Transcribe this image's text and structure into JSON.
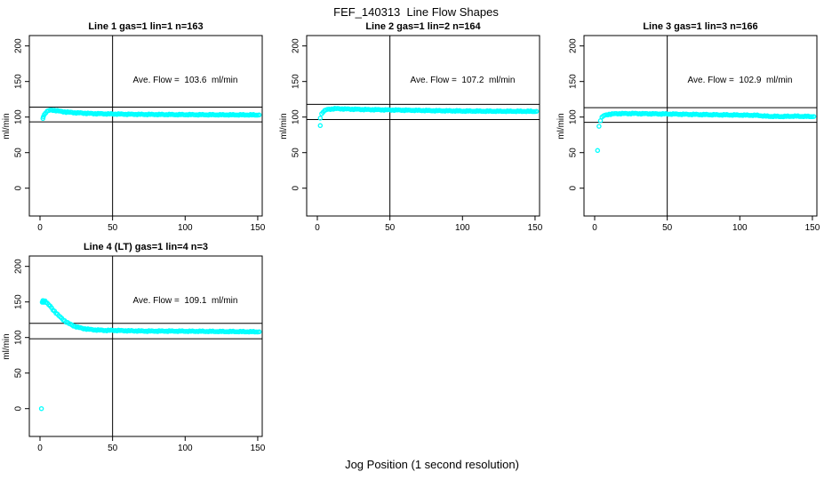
{
  "figure": {
    "title": "FEF_140313  Line Flow Shapes",
    "xlabel": "Jog Position (1 second resolution)"
  },
  "colors": {
    "points": "#00FFFF",
    "axis": "#000000",
    "background": "#FFFFFF"
  },
  "chart_data": [
    {
      "type": "scatter",
      "title": "Line 1 gas=1 lin=1 n=163",
      "n": 163,
      "ave_flow": 103.6,
      "flow_label": "Ave. Flow =  103.6  ml/min",
      "ylabel": "ml/min",
      "upper_limit": 114.0,
      "lower_limit": 93.2,
      "vline_x": 50,
      "x_ticks": [
        0,
        50,
        100,
        150
      ],
      "y_ticks": [
        0,
        50,
        100,
        150,
        200
      ],
      "xlim": [
        -7.35,
        153.1
      ],
      "ylim": [
        -39.1,
        214.6
      ],
      "outliers": [
        [
          2,
          98
        ],
        [
          2.3,
          100.5
        ]
      ],
      "profile": [
        [
          3,
          103.5
        ],
        [
          4,
          106.5
        ],
        [
          5,
          108
        ],
        [
          6,
          109
        ],
        [
          8,
          109.8
        ],
        [
          10,
          109.5
        ],
        [
          14,
          108
        ],
        [
          18,
          107
        ],
        [
          25,
          106
        ],
        [
          35,
          105
        ],
        [
          45,
          104.5
        ],
        [
          60,
          104
        ],
        [
          80,
          103.6
        ],
        [
          100,
          103.4
        ],
        [
          120,
          103.2
        ],
        [
          151,
          103
        ]
      ]
    },
    {
      "type": "scatter",
      "title": "Line 2 gas=1 lin=2 n=164",
      "n": 164,
      "ave_flow": 107.2,
      "flow_label": "Ave. Flow =  107.2  ml/min",
      "ylabel": "ml/min",
      "upper_limit": 117.9,
      "lower_limit": 96.5,
      "vline_x": 50,
      "x_ticks": [
        0,
        50,
        100,
        150
      ],
      "y_ticks": [
        0,
        50,
        100,
        150,
        200
      ],
      "xlim": [
        -7.35,
        153.1
      ],
      "ylim": [
        -39.1,
        214.6
      ],
      "outliers": [
        [
          2,
          88
        ]
      ],
      "profile": [
        [
          2,
          99
        ],
        [
          3,
          104.5
        ],
        [
          4,
          107.5
        ],
        [
          6,
          110
        ],
        [
          8,
          111
        ],
        [
          12,
          111.8
        ],
        [
          18,
          111.5
        ],
        [
          25,
          111
        ],
        [
          35,
          110.5
        ],
        [
          50,
          110
        ],
        [
          65,
          109.5
        ],
        [
          80,
          109
        ],
        [
          100,
          108.5
        ],
        [
          120,
          108.2
        ],
        [
          151,
          108
        ]
      ]
    },
    {
      "type": "scatter",
      "title": "Line 3 gas=1 lin=3 n=166",
      "n": 166,
      "ave_flow": 102.9,
      "flow_label": "Ave. Flow =  102.9  ml/min",
      "ylabel": "ml/min",
      "upper_limit": 113.2,
      "lower_limit": 92.6,
      "vline_x": 50,
      "x_ticks": [
        0,
        50,
        100,
        150
      ],
      "y_ticks": [
        0,
        50,
        100,
        150,
        200
      ],
      "xlim": [
        -7.35,
        153.1
      ],
      "ylim": [
        -39.1,
        214.6
      ],
      "outliers": [
        [
          2,
          53
        ],
        [
          3,
          87
        ]
      ],
      "profile": [
        [
          4,
          95.5
        ],
        [
          5,
          99.5
        ],
        [
          6,
          101.5
        ],
        [
          8,
          103
        ],
        [
          10,
          104
        ],
        [
          15,
          104.8
        ],
        [
          25,
          105
        ],
        [
          40,
          104.6
        ],
        [
          55,
          104.2
        ],
        [
          70,
          103.6
        ],
        [
          85,
          103.2
        ],
        [
          100,
          102.8
        ],
        [
          112,
          102.4
        ],
        [
          118,
          101.2
        ],
        [
          128,
          100.8
        ],
        [
          138,
          101.2
        ],
        [
          151,
          100.7
        ]
      ]
    },
    {
      "type": "scatter",
      "title": "Line 4 (LT) gas=1 lin=4 n=3",
      "n": 3,
      "ave_flow": 109.1,
      "flow_label": "Ave. Flow =  109.1  ml/min",
      "ylabel": "ml/min",
      "upper_limit": 120.0,
      "lower_limit": 98.2,
      "vline_x": 50,
      "x_ticks": [
        0,
        50,
        100,
        150
      ],
      "y_ticks": [
        0,
        50,
        100,
        150,
        200
      ],
      "xlim": [
        -7.35,
        153.1
      ],
      "ylim": [
        -39.1,
        214.6
      ],
      "outliers": [
        [
          1,
          0
        ],
        [
          2,
          152
        ],
        [
          2.5,
          149.5
        ],
        [
          3.5,
          151.5
        ]
      ],
      "profile": [
        [
          1.5,
          150
        ],
        [
          2,
          151
        ],
        [
          3,
          151
        ],
        [
          4,
          150
        ],
        [
          5,
          148
        ],
        [
          6,
          146
        ],
        [
          7,
          144
        ],
        [
          8,
          141.5
        ],
        [
          9,
          139
        ],
        [
          10,
          137
        ],
        [
          12,
          132.5
        ],
        [
          14,
          128.5
        ],
        [
          16,
          125
        ],
        [
          18,
          122
        ],
        [
          20,
          119.5
        ],
        [
          23,
          116.5
        ],
        [
          26,
          114.5
        ],
        [
          29,
          113
        ],
        [
          32,
          112
        ],
        [
          36,
          111
        ],
        [
          40,
          110.5
        ],
        [
          45,
          110
        ],
        [
          50,
          110
        ],
        [
          60,
          109.5
        ],
        [
          75,
          109
        ],
        [
          90,
          109
        ],
        [
          105,
          108.8
        ],
        [
          120,
          108.5
        ],
        [
          135,
          108.3
        ],
        [
          151,
          108
        ]
      ]
    }
  ]
}
